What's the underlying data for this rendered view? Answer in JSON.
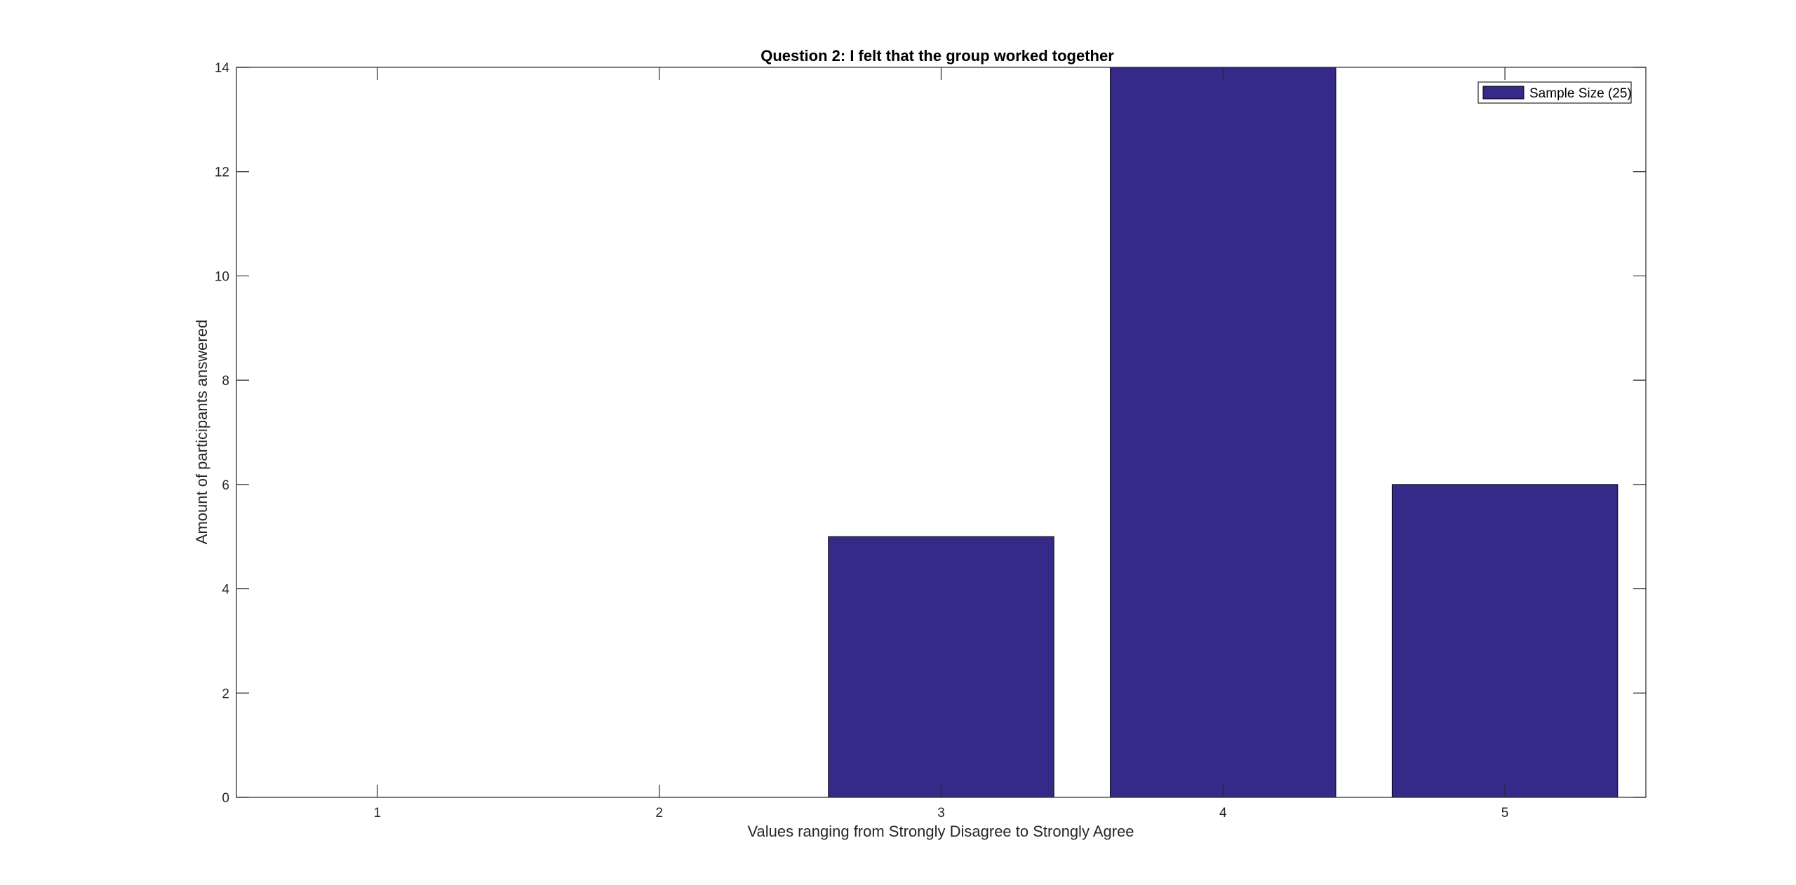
{
  "chart_data": {
    "type": "bar",
    "title": "Question 2: I felt that the group worked together",
    "xlabel": "Values ranging from Strongly Disagree to Strongly Agree",
    "ylabel": "Amount of participants answered",
    "categories": [
      "1",
      "2",
      "3",
      "4",
      "5"
    ],
    "series": [
      {
        "name": "Sample Size (25)",
        "values": [
          0,
          0,
          5,
          14,
          6
        ],
        "color": "#352a87"
      }
    ],
    "ylim": [
      0,
      14
    ],
    "yticks": [
      "0",
      "2",
      "4",
      "6",
      "8",
      "10",
      "12",
      "14"
    ],
    "grid": false,
    "legend_position": "top-right"
  }
}
